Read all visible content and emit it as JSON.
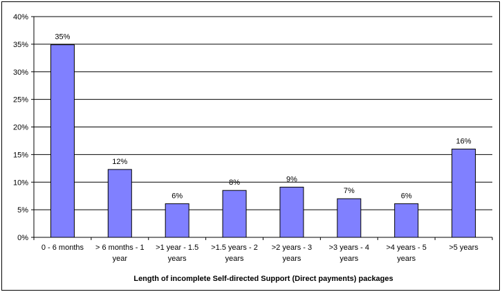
{
  "chart_data": {
    "type": "bar",
    "title": "",
    "xlabel": "Length of incomplete Self-directed Support (Direct payments) packages",
    "ylabel": "",
    "ylim": [
      0,
      40
    ],
    "ytick_labels": [
      "0%",
      "5%",
      "10%",
      "15%",
      "20%",
      "25%",
      "30%",
      "35%",
      "40%"
    ],
    "categories": [
      [
        "0 - 6 months"
      ],
      [
        "> 6 months - 1",
        "year"
      ],
      [
        ">1 year - 1.5",
        "years"
      ],
      [
        ">1.5 years - 2",
        "years"
      ],
      [
        ">2 years - 3",
        "years"
      ],
      [
        ">3 years - 4",
        "years"
      ],
      [
        ">4 years - 5",
        "years"
      ],
      [
        ">5 years"
      ]
    ],
    "values": [
      34.9,
      12.3,
      6.1,
      8.5,
      9.1,
      7.0,
      6.1,
      16.0
    ],
    "data_labels": [
      "35%",
      "12%",
      "6%",
      "8%",
      "9%",
      "7%",
      "6%",
      "16%"
    ],
    "grid": true,
    "bar_color": "#8080FF",
    "bar_edge_color": "#000000",
    "gridline_color": "#000000"
  }
}
